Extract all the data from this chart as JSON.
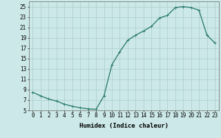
{
  "x": [
    0,
    1,
    2,
    3,
    4,
    5,
    6,
    7,
    8,
    9,
    10,
    11,
    12,
    13,
    14,
    15,
    16,
    17,
    18,
    19,
    20,
    21,
    22,
    23
  ],
  "y": [
    8.5,
    7.8,
    7.2,
    6.8,
    6.2,
    5.8,
    5.5,
    5.3,
    5.2,
    7.8,
    13.8,
    16.3,
    18.5,
    19.5,
    20.3,
    21.2,
    22.8,
    23.3,
    24.8,
    25.0,
    24.8,
    24.3,
    19.5,
    18.0
  ],
  "line_color": "#2e7d6e",
  "marker": "+",
  "marker_size": 3,
  "bg_color": "#cce8e8",
  "grid_color": "#aacccc",
  "xlabel": "Humidex (Indice chaleur)",
  "ylim": [
    5,
    26
  ],
  "xlim": [
    -0.5,
    23.5
  ],
  "yticks": [
    5,
    7,
    9,
    11,
    13,
    15,
    17,
    19,
    21,
    23,
    25
  ],
  "xticks": [
    0,
    1,
    2,
    3,
    4,
    5,
    6,
    7,
    8,
    9,
    10,
    11,
    12,
    13,
    14,
    15,
    16,
    17,
    18,
    19,
    20,
    21,
    22,
    23
  ],
  "xtick_labels": [
    "0",
    "1",
    "2",
    "3",
    "4",
    "5",
    "6",
    "7",
    "8",
    "9",
    "10",
    "11",
    "12",
    "13",
    "14",
    "15",
    "16",
    "17",
    "18",
    "19",
    "20",
    "21",
    "22",
    "23"
  ],
  "tick_fontsize": 5.5,
  "xlabel_fontsize": 6.5,
  "linewidth": 1.0,
  "markeredgewidth": 0.7
}
